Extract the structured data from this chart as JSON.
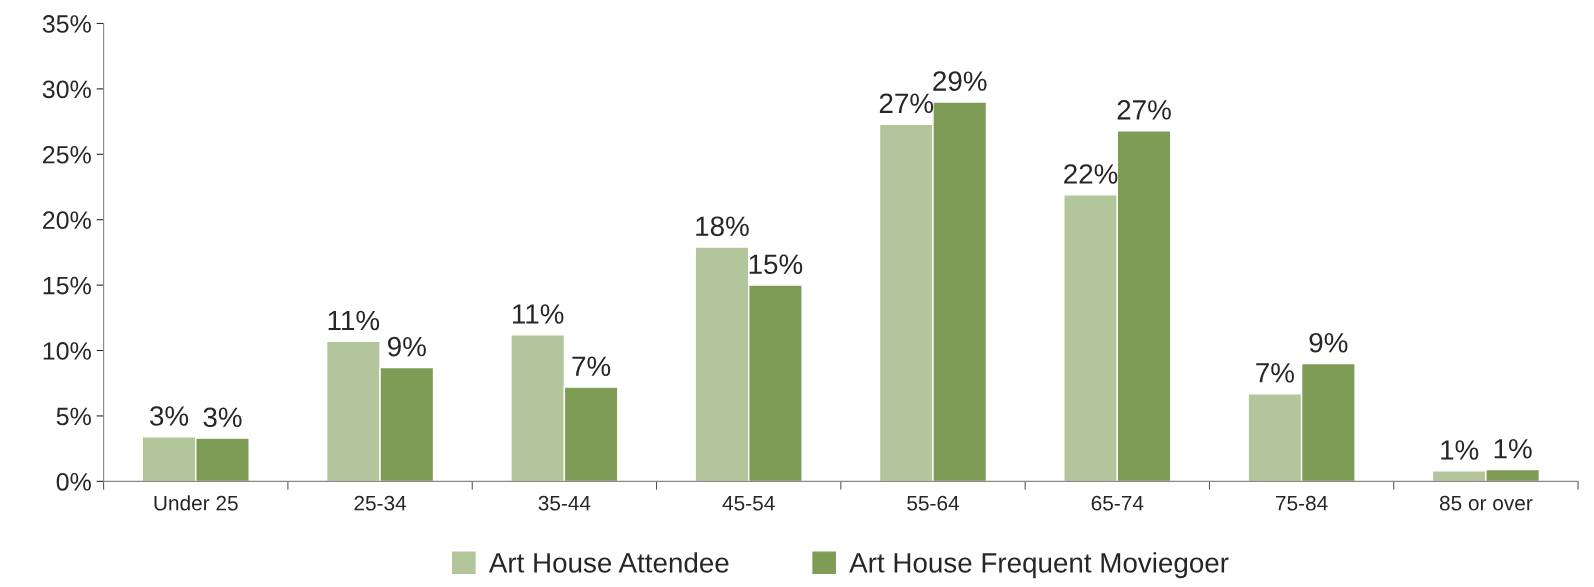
{
  "chart_data": {
    "type": "bar",
    "categories": [
      "Under 25",
      "25-34",
      "35-44",
      "45-54",
      "55-64",
      "65-74",
      "75-84",
      "85 or over"
    ],
    "series": [
      {
        "name": "Art House Attendee",
        "color": "#b3c59a",
        "values": [
          3.4,
          10.7,
          11.2,
          17.9,
          27.3,
          21.9,
          6.7,
          0.8
        ],
        "value_labels": [
          "3%",
          "11%",
          "11%",
          "18%",
          "27%",
          "22%",
          "7%",
          "1%"
        ]
      },
      {
        "name": "Art House Frequent Moviegoer",
        "color": "#7f9c57",
        "values": [
          3.3,
          8.7,
          7.2,
          15.0,
          29.0,
          26.8,
          9.0,
          0.9
        ],
        "value_labels": [
          "3%",
          "9%",
          "7%",
          "15%",
          "29%",
          "27%",
          "9%",
          "1%"
        ]
      }
    ],
    "ylim": [
      0,
      35
    ],
    "yticks": [
      {
        "value": 0,
        "label": "0%"
      },
      {
        "value": 5,
        "label": "5%"
      },
      {
        "value": 10,
        "label": "10%"
      },
      {
        "value": 15,
        "label": "15%"
      },
      {
        "value": 20,
        "label": "20%"
      },
      {
        "value": 25,
        "label": "25%"
      },
      {
        "value": 30,
        "label": "30%"
      },
      {
        "value": 35,
        "label": "35%"
      }
    ],
    "grid": false,
    "legend": "bottom"
  }
}
